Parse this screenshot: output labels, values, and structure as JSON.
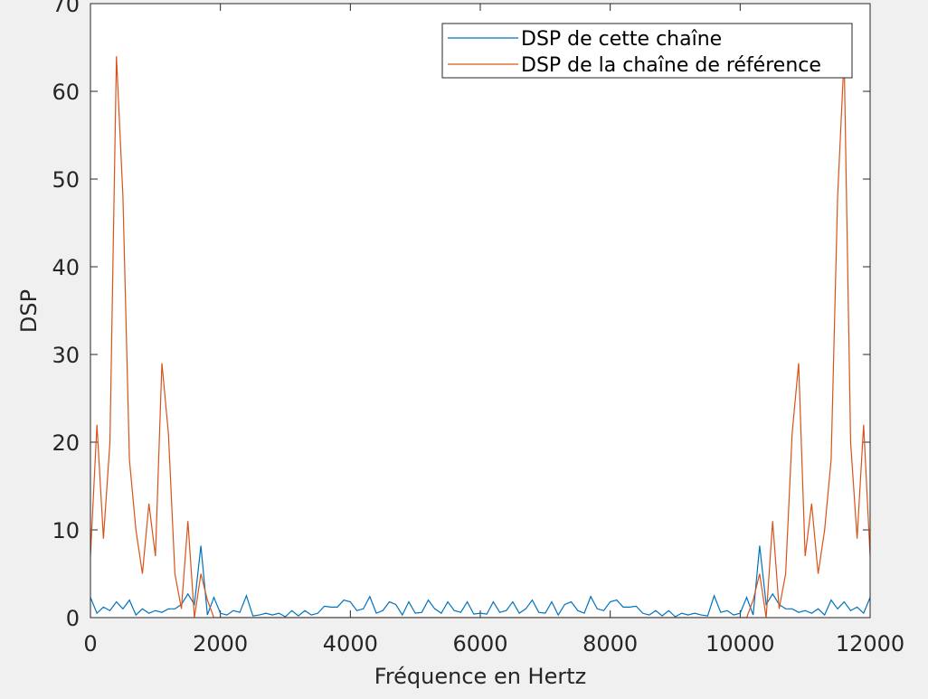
{
  "chart_data": {
    "type": "line",
    "xlabel": "Fréquence en Hertz",
    "ylabel": "DSP",
    "x": [
      0,
      100,
      200,
      300,
      400,
      500,
      600,
      700,
      800,
      900,
      1000,
      1100,
      1200,
      1300,
      1400,
      1500,
      1600,
      1700,
      1800,
      1900,
      2000,
      2100,
      2200,
      2300,
      2400,
      2500,
      2600,
      2700,
      2800,
      2900,
      3000,
      3100,
      3200,
      3300,
      3400,
      3500,
      3600,
      3700,
      3800,
      3900,
      4000,
      4100,
      4200,
      4300,
      4400,
      4500,
      4600,
      4700,
      4800,
      4900,
      5000,
      5100,
      5200,
      5300,
      5400,
      5500,
      5600,
      5700,
      5800,
      5900,
      6000,
      6100,
      6200,
      6300,
      6400,
      6500,
      6600,
      6700,
      6800,
      6900,
      7000,
      7100,
      7200,
      7300,
      7400,
      7500,
      7600,
      7700,
      7800,
      7900,
      8000,
      8100,
      8200,
      8300,
      8400,
      8500,
      8600,
      8700,
      8800,
      8900,
      9000,
      9100,
      9200,
      9300,
      9400,
      9500,
      9600,
      9700,
      9800,
      9900,
      10000,
      10100,
      10200,
      10300,
      10400,
      10500,
      10600,
      10700,
      10800,
      10900,
      11000,
      11100,
      11200,
      11300,
      11400,
      11500,
      11600,
      11700,
      11800,
      11900,
      12000
    ],
    "series": [
      {
        "name": "DSP de cette chaîne",
        "color": "#0072bd",
        "values": [
          2.3,
          0.5,
          1.2,
          0.8,
          1.8,
          1,
          2,
          0.3,
          1,
          0.5,
          0.8,
          0.6,
          1,
          1,
          1.5,
          2.7,
          1.5,
          8.2,
          0.3,
          2.3,
          0.5,
          0.3,
          0.8,
          0.6,
          2.5,
          0.2,
          0.3,
          0.5,
          0.3,
          0.5,
          0.1,
          0.8,
          0.2,
          0.8,
          0.3,
          0.5,
          1.3,
          1.2,
          1.2,
          2,
          1.8,
          0.8,
          1,
          2.4,
          0.5,
          0.8,
          1.8,
          1.5,
          0.3,
          1.8,
          0.5,
          0.6,
          2,
          1,
          0.5,
          1.8,
          0.8,
          0.6,
          1.8,
          0.4,
          0.5,
          0.4,
          1.8,
          0.6,
          0.8,
          1.8,
          0.5,
          1,
          2,
          0.6,
          0.5,
          1.8,
          0.3,
          1.5,
          1.8,
          0.8,
          0.5,
          2.4,
          1,
          0.8,
          1.8,
          2,
          1.2,
          1.2,
          1.3,
          0.5,
          0.3,
          0.8,
          0.2,
          0.8,
          0.1,
          0.5,
          0.3,
          0.5,
          0.3,
          0.2,
          2.5,
          0.6,
          0.8,
          0.3,
          0.5,
          2.3,
          0.3,
          8.2,
          1.5,
          2.7,
          1.5,
          1,
          1,
          0.6,
          0.8,
          0.5,
          1,
          0.3,
          2,
          1,
          1.8,
          0.8,
          1.2,
          0.5,
          2.3
        ]
      },
      {
        "name": "DSP de la chaîne de référence",
        "color": "#d95319",
        "values": [
          7,
          22,
          9,
          20,
          64,
          48,
          18,
          10,
          5,
          13,
          7,
          29,
          21,
          5,
          1,
          11,
          0,
          5,
          2,
          0,
          0,
          0,
          0,
          0,
          0,
          0,
          0,
          0,
          0,
          0,
          0,
          0,
          0,
          0,
          0,
          0,
          0,
          0,
          0,
          0,
          0,
          0,
          0,
          0,
          0,
          0,
          0,
          0,
          0,
          0,
          0,
          0,
          0,
          0,
          0,
          0,
          0,
          0,
          0,
          0,
          0,
          0,
          0,
          0,
          0,
          0,
          0,
          0,
          0,
          0,
          0,
          0,
          0,
          0,
          0,
          0,
          0,
          0,
          0,
          0,
          0,
          0,
          0,
          0,
          0,
          0,
          0,
          0,
          0,
          0,
          0,
          0,
          0,
          0,
          0,
          0,
          0,
          0,
          0,
          0,
          0,
          0,
          2,
          5,
          0,
          11,
          1,
          5,
          21,
          29,
          7,
          13,
          5,
          10,
          18,
          48,
          64,
          20,
          9,
          22,
          7
        ]
      }
    ],
    "xlim": [
      0,
      12000
    ],
    "xticks": [
      0,
      2000,
      4000,
      6000,
      8000,
      10000,
      12000
    ],
    "ylim": [
      0,
      70
    ],
    "yticks": [
      0,
      10,
      20,
      30,
      40,
      50,
      60,
      70
    ],
    "legend": "northeast",
    "grid": false
  }
}
